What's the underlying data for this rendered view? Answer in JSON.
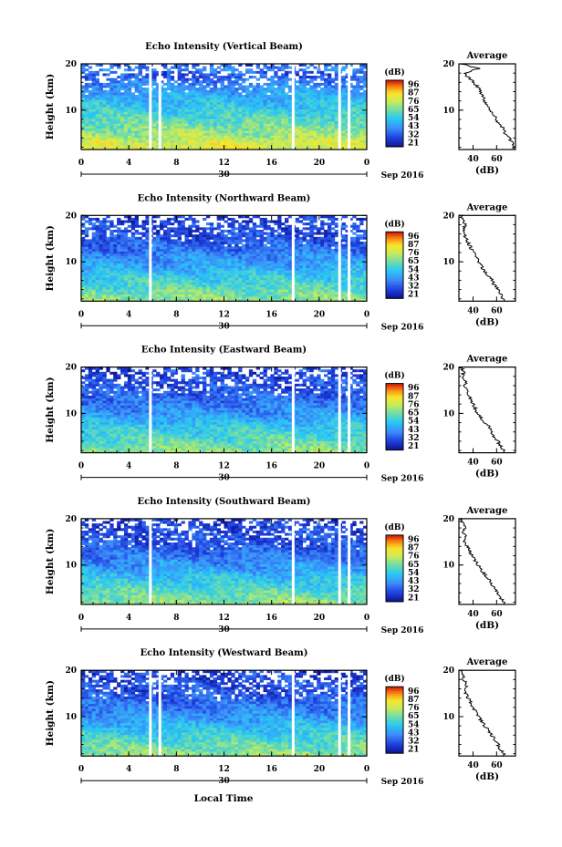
{
  "figure": {
    "xlabel": "Local Time",
    "month_label": "Sep 2016",
    "day_label": "30",
    "time_ticks": [
      "0",
      "4",
      "8",
      "12",
      "16",
      "20",
      "0"
    ],
    "height_label": "Height (km)",
    "height_ticks": [
      "10",
      "20"
    ],
    "colorbar_unit": "(dB)",
    "colorbar_ticks": [
      "96",
      "87",
      "76",
      "65",
      "54",
      "43",
      "32",
      "21"
    ],
    "avg_title": "Average",
    "avg_xlabel": "(dB)",
    "avg_ticks": [
      "40",
      "60"
    ]
  },
  "panels": [
    {
      "title": "Echo Intensity (Vertical Beam)"
    },
    {
      "title": "Echo Intensity (Northward Beam)"
    },
    {
      "title": "Echo Intensity (Eastward Beam)"
    },
    {
      "title": "Echo Intensity (Southward Beam)"
    },
    {
      "title": "Echo Intensity (Westward Beam)"
    }
  ],
  "chart_data": [
    {
      "type": "heatmap",
      "title": "Echo Intensity (Vertical Beam)",
      "xlabel": "Local Time",
      "ylabel": "Height (km)",
      "xlim_hours": [
        0,
        24
      ],
      "ylim_km": [
        1.5,
        20
      ],
      "colorbar": {
        "label": "(dB)",
        "ticks": [
          96,
          87,
          76,
          65,
          54,
          43,
          32,
          21
        ],
        "range": [
          21,
          96
        ]
      },
      "data_gaps_hours": [
        [
          5.7,
          5.9
        ],
        [
          6.5,
          6.7
        ],
        [
          17.7,
          17.9
        ],
        [
          21.6,
          21.8
        ],
        [
          22.4,
          22.6
        ]
      ],
      "profile": {
        "title": "Average",
        "xlabel": "(dB)",
        "height_km": [
          2,
          3,
          4,
          5,
          6,
          7,
          8,
          9,
          10,
          11,
          12,
          13,
          14,
          15,
          16,
          17,
          18,
          19,
          20
        ],
        "intensity_db": [
          75,
          74,
          70,
          67,
          66,
          62,
          60,
          57,
          55,
          52,
          50,
          48,
          46,
          44,
          41,
          36,
          33,
          45,
          30
        ]
      }
    },
    {
      "type": "heatmap",
      "title": "Echo Intensity (Northward Beam)",
      "xlabel": "Local Time",
      "ylabel": "Height (km)",
      "xlim_hours": [
        0,
        24
      ],
      "ylim_km": [
        1.5,
        20
      ],
      "colorbar": {
        "label": "(dB)",
        "ticks": [
          96,
          87,
          76,
          65,
          54,
          43,
          32,
          21
        ],
        "range": [
          21,
          96
        ]
      },
      "data_gaps_hours": [
        [
          5.7,
          5.9
        ],
        [
          17.7,
          17.9
        ],
        [
          21.6,
          21.8
        ],
        [
          22.4,
          22.6
        ]
      ],
      "profile": {
        "title": "Average",
        "xlabel": "(dB)",
        "height_km": [
          2,
          3,
          4,
          5,
          6,
          7,
          8,
          9,
          10,
          11,
          12,
          13,
          14,
          15,
          16,
          17,
          18,
          19,
          20
        ],
        "intensity_db": [
          66,
          63,
          61,
          58,
          56,
          53,
          50,
          47,
          45,
          43,
          40,
          38,
          36,
          34,
          33,
          32,
          33,
          31,
          30
        ]
      }
    },
    {
      "type": "heatmap",
      "title": "Echo Intensity (Eastward Beam)",
      "xlabel": "Local Time",
      "ylabel": "Height (km)",
      "xlim_hours": [
        0,
        24
      ],
      "ylim_km": [
        1.5,
        20
      ],
      "colorbar": {
        "label": "(dB)",
        "ticks": [
          96,
          87,
          76,
          65,
          54,
          43,
          32,
          21
        ],
        "range": [
          21,
          96
        ]
      },
      "data_gaps_hours": [
        [
          5.7,
          5.9
        ],
        [
          17.7,
          17.9
        ],
        [
          21.6,
          21.8
        ],
        [
          22.4,
          22.6
        ]
      ],
      "profile": {
        "title": "Average",
        "xlabel": "(dB)",
        "height_km": [
          2,
          3,
          4,
          5,
          6,
          7,
          8,
          9,
          10,
          11,
          12,
          13,
          14,
          15,
          16,
          17,
          18,
          19,
          20
        ],
        "intensity_db": [
          66,
          63,
          61,
          58,
          56,
          54,
          50,
          47,
          44,
          42,
          40,
          38,
          36,
          35,
          33,
          34,
          31,
          32,
          30
        ]
      }
    },
    {
      "type": "heatmap",
      "title": "Echo Intensity (Southward Beam)",
      "xlabel": "Local Time",
      "ylabel": "Height (km)",
      "xlim_hours": [
        0,
        24
      ],
      "ylim_km": [
        1.5,
        20
      ],
      "colorbar": {
        "label": "(dB)",
        "ticks": [
          96,
          87,
          76,
          65,
          54,
          43,
          32,
          21
        ],
        "range": [
          21,
          96
        ]
      },
      "data_gaps_hours": [
        [
          5.7,
          5.9
        ],
        [
          17.7,
          17.9
        ],
        [
          21.6,
          21.8
        ],
        [
          22.4,
          22.6
        ]
      ],
      "profile": {
        "title": "Average",
        "xlabel": "(dB)",
        "height_km": [
          2,
          3,
          4,
          5,
          6,
          7,
          8,
          9,
          10,
          11,
          12,
          13,
          14,
          15,
          16,
          17,
          18,
          19,
          20
        ],
        "intensity_db": [
          66,
          63,
          61,
          58,
          55,
          53,
          50,
          47,
          44,
          42,
          39,
          37,
          35,
          33,
          34,
          32,
          33,
          31,
          30
        ]
      }
    },
    {
      "type": "heatmap",
      "title": "Echo Intensity (Westward Beam)",
      "xlabel": "Local Time",
      "ylabel": "Height (km)",
      "xlim_hours": [
        0,
        24
      ],
      "ylim_km": [
        1.5,
        20
      ],
      "colorbar": {
        "label": "(dB)",
        "ticks": [
          96,
          87,
          76,
          65,
          54,
          43,
          32,
          21
        ],
        "range": [
          21,
          96
        ]
      },
      "data_gaps_hours": [
        [
          5.7,
          5.9
        ],
        [
          6.5,
          6.7
        ],
        [
          17.7,
          17.9
        ],
        [
          21.6,
          21.8
        ],
        [
          22.4,
          22.6
        ]
      ],
      "profile": {
        "title": "Average",
        "xlabel": "(dB)",
        "height_km": [
          2,
          3,
          4,
          5,
          6,
          7,
          8,
          9,
          10,
          11,
          12,
          13,
          14,
          15,
          16,
          17,
          18,
          19,
          20
        ],
        "intensity_db": [
          66,
          63,
          61,
          58,
          56,
          53,
          50,
          47,
          45,
          42,
          40,
          38,
          36,
          34,
          33,
          35,
          32,
          31,
          30
        ]
      }
    }
  ]
}
